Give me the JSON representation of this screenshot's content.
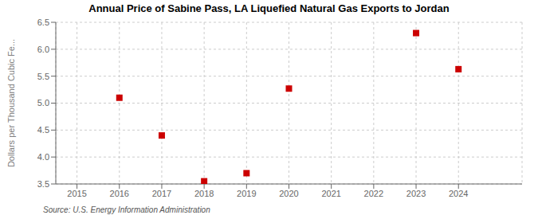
{
  "chart_data": {
    "type": "scatter",
    "title": "Annual Price of Sabine Pass, LA Liquefied Natural Gas Exports to Jordan",
    "y_label": "Dollars per Thousand Cubic Fe...",
    "annotations": [
      "Source: U.S. Energy Information Administration"
    ],
    "x": [
      2016,
      2017,
      2018,
      2019,
      2020,
      2023,
      2024
    ],
    "values": [
      5.1,
      4.4,
      3.55,
      3.7,
      5.27,
      6.3,
      5.63
    ],
    "color": "#cc0000",
    "marker": "square",
    "xlim": [
      2014.5,
      2025.5
    ],
    "ylim": [
      3.5,
      6.5
    ],
    "xticks": [
      2015,
      2016,
      2017,
      2018,
      2019,
      2020,
      2021,
      2022,
      2023,
      2024
    ],
    "yticks": [
      3.5,
      {
        "value": 4.0,
        "label": "4.0"
      },
      4.5,
      {
        "value": 5.0,
        "label": "5.0"
      },
      5.5,
      {
        "value": 6.0,
        "label": "6.0"
      },
      6.5
    ],
    "grid": true
  }
}
